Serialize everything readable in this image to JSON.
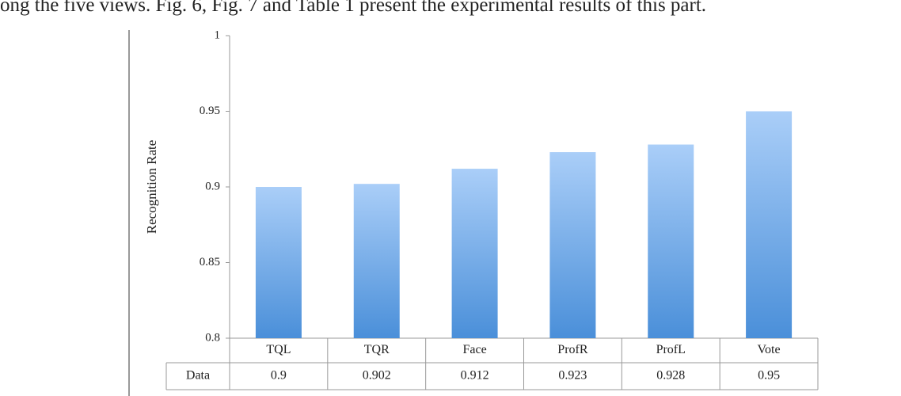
{
  "intro_text": "ong the five views. Fig. 6, Fig. 7 and Table 1 present the experimental results of this part.",
  "chart_data": {
    "type": "bar",
    "y_label": "Recognition Rate",
    "categories": [
      "TQL",
      "TQR",
      "Face",
      "ProfR",
      "ProfL",
      "Vote"
    ],
    "series": [
      {
        "name": "Data",
        "gradient": [
          "#aacef8",
          "#4a8fd9"
        ],
        "values": [
          0.9,
          0.902,
          0.912,
          0.923,
          0.928,
          0.95
        ]
      }
    ],
    "ylim": [
      0.8,
      1
    ],
    "yticks": [
      0.8,
      0.85,
      0.9,
      0.95,
      1
    ],
    "grid": false,
    "data_table": true
  }
}
